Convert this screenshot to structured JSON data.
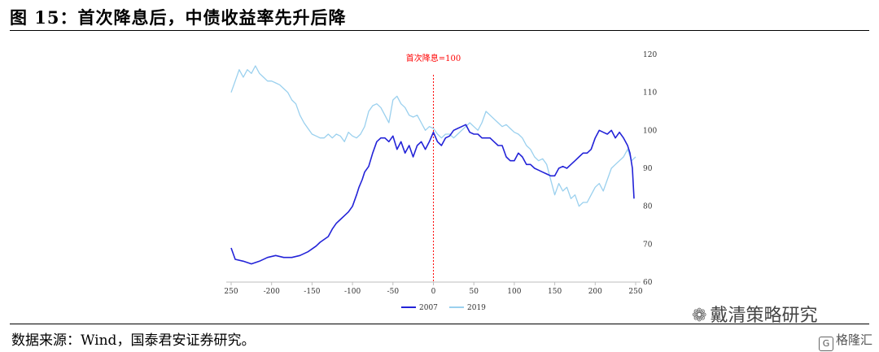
{
  "figure": {
    "title": "图 15：首次降息后，中债收益率先升后降",
    "source": "数据来源：Wind，国泰君安证券研究。",
    "watermark": "戴清策略研究",
    "brand": "格隆汇"
  },
  "chart_data": {
    "type": "line",
    "title": "",
    "xlabel": "",
    "ylabel": "",
    "xlim": [
      -250,
      250
    ],
    "ylim": [
      60,
      120
    ],
    "x_ticks": [
      250,
      -200,
      -150,
      -100,
      -50,
      0,
      50,
      100,
      150,
      200,
      250
    ],
    "y_ticks": [
      60,
      70,
      80,
      90,
      100,
      110,
      120
    ],
    "y_axis_position": "right",
    "grid": false,
    "legend": "bottom-center",
    "annotation": {
      "x": 0,
      "text": "首次降息=100",
      "color": "#ff0000",
      "style": "dashed-vertical"
    },
    "series": [
      {
        "name": "2007",
        "color": "#2323d8",
        "x": [
          -250,
          -245,
          -235,
          -225,
          -215,
          -205,
          -195,
          -185,
          -175,
          -165,
          -155,
          -145,
          -140,
          -130,
          -125,
          -120,
          -115,
          -110,
          -105,
          -100,
          -95,
          -92,
          -88,
          -85,
          -80,
          -75,
          -70,
          -65,
          -60,
          -55,
          -50,
          -45,
          -40,
          -35,
          -30,
          -25,
          -20,
          -15,
          -10,
          -5,
          0,
          5,
          10,
          15,
          20,
          25,
          30,
          35,
          40,
          45,
          50,
          55,
          60,
          65,
          70,
          75,
          80,
          85,
          90,
          95,
          100,
          105,
          110,
          115,
          120,
          125,
          130,
          135,
          140,
          145,
          150,
          155,
          160,
          165,
          170,
          175,
          180,
          185,
          190,
          195,
          200,
          205,
          210,
          215,
          220,
          225,
          230,
          235,
          240,
          243,
          246,
          248
        ],
        "y": [
          69,
          66,
          65.5,
          64.8,
          65.5,
          66.5,
          67,
          66.5,
          66.5,
          67,
          68,
          69.5,
          70.5,
          72,
          74,
          75.5,
          76.5,
          77.5,
          78.5,
          80,
          83,
          85,
          87,
          89,
          90.5,
          94,
          97,
          98,
          98,
          97,
          98.5,
          95,
          97,
          94,
          96,
          93,
          96,
          97,
          95,
          97,
          99.5,
          97,
          96,
          98,
          98.5,
          100,
          100.5,
          101,
          101.5,
          99.5,
          99,
          99,
          98,
          98,
          98,
          97,
          96,
          96,
          93,
          92,
          92,
          94,
          93,
          91,
          91,
          90,
          89.5,
          89,
          88.5,
          88,
          88,
          90,
          90.5,
          90,
          91,
          92,
          93,
          94,
          94,
          95,
          98,
          100,
          99.5,
          99,
          100,
          98,
          99.5,
          98,
          96,
          94,
          90,
          82
        ]
      },
      {
        "name": "2019",
        "color": "#9ad0ee",
        "x": [
          -250,
          -245,
          -240,
          -235,
          -230,
          -225,
          -220,
          -215,
          -210,
          -205,
          -200,
          -195,
          -190,
          -185,
          -180,
          -175,
          -170,
          -165,
          -160,
          -155,
          -150,
          -145,
          -140,
          -135,
          -130,
          -125,
          -120,
          -115,
          -110,
          -105,
          -100,
          -95,
          -90,
          -85,
          -80,
          -75,
          -70,
          -65,
          -60,
          -55,
          -50,
          -45,
          -40,
          -35,
          -30,
          -25,
          -20,
          -15,
          -10,
          -5,
          0,
          5,
          10,
          15,
          20,
          25,
          30,
          35,
          40,
          45,
          50,
          55,
          60,
          65,
          70,
          75,
          80,
          85,
          90,
          95,
          100,
          105,
          110,
          115,
          120,
          125,
          130,
          135,
          140,
          145,
          150,
          155,
          160,
          165,
          170,
          175,
          180,
          185,
          190,
          195,
          200,
          205,
          210,
          215,
          220,
          225,
          230,
          235,
          240,
          245,
          250
        ],
        "y": [
          110,
          113,
          116,
          114,
          116,
          115,
          117,
          115,
          114,
          113,
          113,
          112.5,
          112,
          111,
          110,
          108,
          107,
          104,
          102,
          100.5,
          99,
          98.5,
          98,
          98,
          99,
          98,
          99,
          98.5,
          97,
          99.5,
          98.5,
          98,
          99,
          101,
          105,
          106.5,
          107,
          106,
          104,
          102,
          108,
          109,
          107,
          106,
          104,
          103.5,
          104,
          102,
          100,
          101,
          100.5,
          99,
          98,
          99,
          99,
          98,
          99,
          100,
          101,
          102,
          101,
          100,
          102,
          105,
          104,
          103,
          102,
          101,
          101.5,
          100.5,
          99.5,
          99,
          98,
          96,
          95,
          93,
          92,
          92.5,
          91,
          87,
          83,
          86,
          84,
          85,
          82,
          83,
          80,
          81,
          81,
          83,
          85,
          86,
          84,
          87,
          90,
          91,
          92,
          93,
          95,
          92,
          93
        ]
      }
    ]
  }
}
